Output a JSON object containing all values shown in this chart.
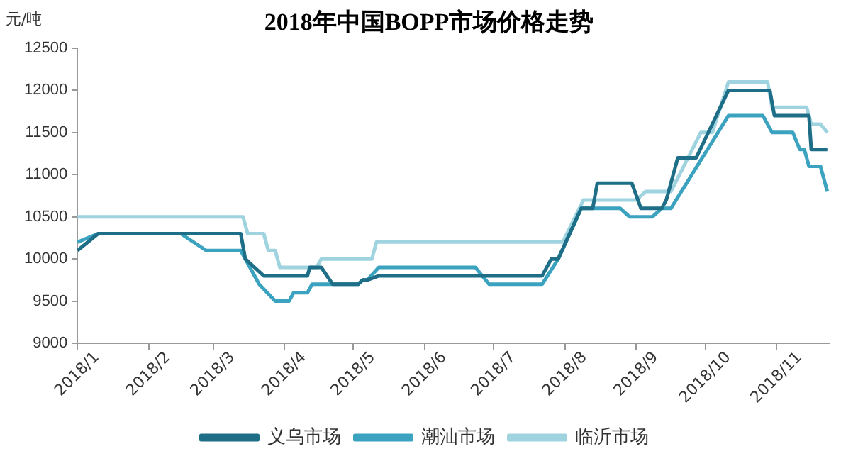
{
  "chart_data": {
    "type": "line",
    "title": "2018年中国BOPP市场价格走势",
    "ylabel": "元/吨",
    "legend": "bottom",
    "grid": false,
    "marker": "none",
    "line_style": "solid",
    "xlim": [
      "2018-01-01",
      "2018-11-24"
    ],
    "xticks": [
      {
        "value": "2018-01-01",
        "label": "2018/1"
      },
      {
        "value": "2018-02-01",
        "label": "2018/2"
      },
      {
        "value": "2018-03-01",
        "label": "2018/3"
      },
      {
        "value": "2018-04-01",
        "label": "2018/4"
      },
      {
        "value": "2018-05-01",
        "label": "2018/5"
      },
      {
        "value": "2018-06-01",
        "label": "2018/6"
      },
      {
        "value": "2018-07-01",
        "label": "2018/7"
      },
      {
        "value": "2018-08-01",
        "label": "2018/8"
      },
      {
        "value": "2018-09-01",
        "label": "2018/9"
      },
      {
        "value": "2018-10-01",
        "label": "2018/10"
      },
      {
        "value": "2018-11-01",
        "label": "2018/11"
      }
    ],
    "ylim": [
      9000,
      12500
    ],
    "yticks": [
      9000,
      9500,
      10000,
      10500,
      11000,
      11500,
      12000,
      12500
    ],
    "series": [
      {
        "name": "义乌市场",
        "color": "#1f6e87",
        "x": [
          "2018-01-01",
          "2018-01-10",
          "2018-03-13",
          "2018-03-15",
          "2018-03-19",
          "2018-03-23",
          "2018-04-11",
          "2018-04-12",
          "2018-04-17",
          "2018-04-22",
          "2018-05-03",
          "2018-05-05",
          "2018-05-07",
          "2018-05-12",
          "2018-07-22",
          "2018-07-26",
          "2018-07-29",
          "2018-08-08",
          "2018-08-13",
          "2018-08-15",
          "2018-08-30",
          "2018-09-03",
          "2018-09-12",
          "2018-09-14",
          "2018-09-19",
          "2018-09-27",
          "2018-10-11",
          "2018-10-29",
          "2018-10-31",
          "2018-11-15",
          "2018-11-16",
          "2018-11-23"
        ],
        "values": [
          10100,
          10300,
          10300,
          10000,
          9900,
          9800,
          9800,
          9900,
          9900,
          9700,
          9700,
          9750,
          9750,
          9800,
          9800,
          10000,
          10000,
          10600,
          10600,
          10900,
          10900,
          10600,
          10600,
          10700,
          11200,
          11200,
          12000,
          12000,
          11700,
          11700,
          11300,
          11300
        ]
      },
      {
        "name": "潮汕市场",
        "color": "#3ba3bf",
        "x": [
          "2018-01-01",
          "2018-01-10",
          "2018-02-15",
          "2018-02-26",
          "2018-03-13",
          "2018-03-17",
          "2018-03-21",
          "2018-03-28",
          "2018-04-03",
          "2018-04-05",
          "2018-04-11",
          "2018-04-13",
          "2018-05-03",
          "2018-05-05",
          "2018-05-07",
          "2018-05-12",
          "2018-06-23",
          "2018-06-29",
          "2018-07-22",
          "2018-07-29",
          "2018-08-08",
          "2018-08-25",
          "2018-08-29",
          "2018-09-08",
          "2018-09-12",
          "2018-09-16",
          "2018-10-11",
          "2018-10-26",
          "2018-10-30",
          "2018-11-08",
          "2018-11-11",
          "2018-11-13",
          "2018-11-15",
          "2018-11-20",
          "2018-11-23"
        ],
        "values": [
          10200,
          10300,
          10300,
          10100,
          10100,
          9900,
          9700,
          9500,
          9500,
          9600,
          9600,
          9700,
          9700,
          9750,
          9750,
          9900,
          9900,
          9700,
          9700,
          10000,
          10600,
          10600,
          10500,
          10500,
          10600,
          10600,
          11700,
          11700,
          11500,
          11500,
          11300,
          11300,
          11100,
          11100,
          10800
        ]
      },
      {
        "name": "临沂市场",
        "color": "#9fd3e0",
        "x": [
          "2018-01-01",
          "2018-03-14",
          "2018-03-16",
          "2018-03-23",
          "2018-03-25",
          "2018-03-28",
          "2018-03-30",
          "2018-04-15",
          "2018-04-17",
          "2018-05-09",
          "2018-05-11",
          "2018-07-31",
          "2018-08-09",
          "2018-09-01",
          "2018-09-05",
          "2018-09-16",
          "2018-09-29",
          "2018-10-04",
          "2018-10-11",
          "2018-10-28",
          "2018-10-30",
          "2018-11-14",
          "2018-11-16",
          "2018-11-20",
          "2018-11-23"
        ],
        "values": [
          10500,
          10500,
          10300,
          10300,
          10100,
          10100,
          9900,
          9900,
          10000,
          10000,
          10200,
          10200,
          10700,
          10700,
          10800,
          10800,
          11500,
          11500,
          12100,
          12100,
          11800,
          11800,
          11600,
          11600,
          11500
        ]
      }
    ]
  }
}
